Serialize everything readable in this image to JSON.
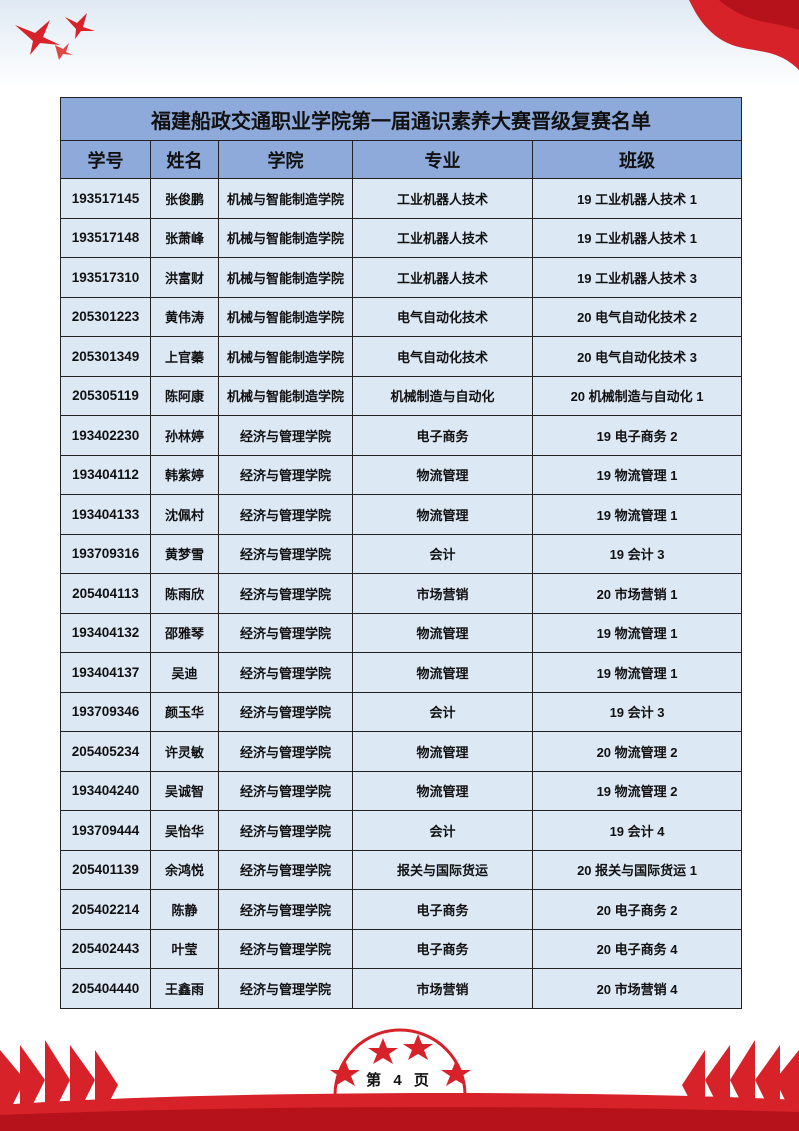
{
  "document": {
    "title": "福建船政交通职业学院第一届通识素养大赛晋级复赛名单",
    "columns": [
      "学号",
      "姓名",
      "学院",
      "专业",
      "班级"
    ],
    "rows": [
      [
        "193517145",
        "张俊鹏",
        "机械与智能制造学院",
        "工业机器人技术",
        "19 工业机器人技术 1"
      ],
      [
        "193517148",
        "张萧峰",
        "机械与智能制造学院",
        "工业机器人技术",
        "19 工业机器人技术 1"
      ],
      [
        "193517310",
        "洪富财",
        "机械与智能制造学院",
        "工业机器人技术",
        "19 工业机器人技术 3"
      ],
      [
        "205301223",
        "黄伟涛",
        "机械与智能制造学院",
        "电气自动化技术",
        "20 电气自动化技术 2"
      ],
      [
        "205301349",
        "上官蓁",
        "机械与智能制造学院",
        "电气自动化技术",
        "20 电气自动化技术 3"
      ],
      [
        "205305119",
        "陈阿康",
        "机械与智能制造学院",
        "机械制造与自动化",
        "20 机械制造与自动化 1"
      ],
      [
        "193402230",
        "孙林婷",
        "经济与管理学院",
        "电子商务",
        "19 电子商务 2"
      ],
      [
        "193404112",
        "韩紫婷",
        "经济与管理学院",
        "物流管理",
        "19 物流管理 1"
      ],
      [
        "193404133",
        "沈佩村",
        "经济与管理学院",
        "物流管理",
        "19 物流管理 1"
      ],
      [
        "193709316",
        "黄梦雪",
        "经济与管理学院",
        "会计",
        "19 会计 3"
      ],
      [
        "205404113",
        "陈雨欣",
        "经济与管理学院",
        "市场营销",
        "20 市场营销 1"
      ],
      [
        "193404132",
        "邵雅琴",
        "经济与管理学院",
        "物流管理",
        "19 物流管理 1"
      ],
      [
        "193404137",
        "吴迪",
        "经济与管理学院",
        "物流管理",
        "19 物流管理 1"
      ],
      [
        "193709346",
        "颜玉华",
        "经济与管理学院",
        "会计",
        "19 会计 3"
      ],
      [
        "205405234",
        "许灵敏",
        "经济与管理学院",
        "物流管理",
        "20 物流管理 2"
      ],
      [
        "193404240",
        "吴诚智",
        "经济与管理学院",
        "物流管理",
        "19 物流管理 2"
      ],
      [
        "193709444",
        "吴怡华",
        "经济与管理学院",
        "会计",
        "19 会计 4"
      ],
      [
        "205401139",
        "余鸿悦",
        "经济与管理学院",
        "报关与国际货运",
        "20 报关与国际货运 1"
      ],
      [
        "205402214",
        "陈静",
        "经济与管理学院",
        "电子商务",
        "20 电子商务 2"
      ],
      [
        "205402443",
        "叶莹",
        "经济与管理学院",
        "电子商务",
        "20 电子商务 4"
      ],
      [
        "205404440",
        "王鑫雨",
        "经济与管理学院",
        "市场营销",
        "20 市场营销 4"
      ]
    ],
    "page_label": "第 4 页"
  },
  "colors": {
    "header_bg": "#8eaadb",
    "cell_bg": "#dde8f5",
    "accent_red": "#d7222a"
  }
}
